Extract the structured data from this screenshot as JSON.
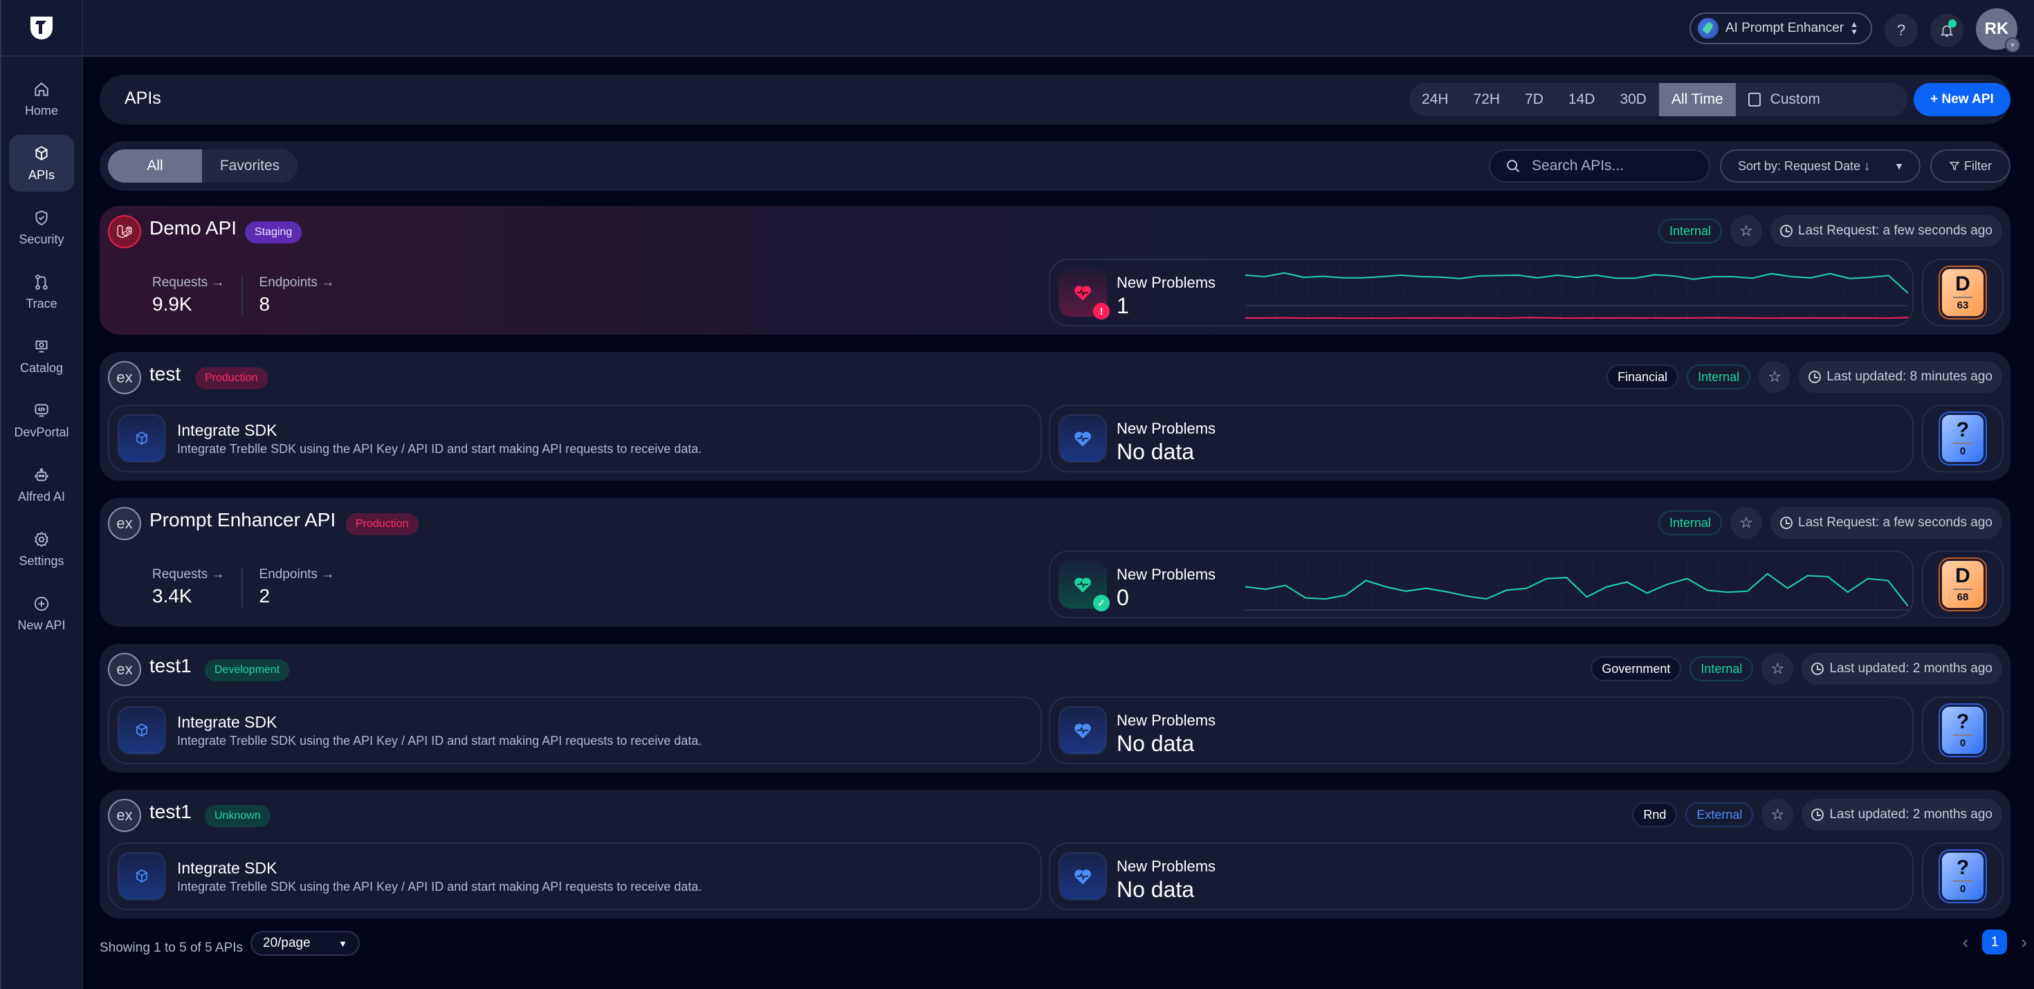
{
  "sidebar": {
    "items": [
      {
        "label": "Home",
        "icon": "home-icon"
      },
      {
        "label": "APIs",
        "icon": "cube-icon",
        "active": true
      },
      {
        "label": "Security",
        "icon": "shield-check-icon"
      },
      {
        "label": "Trace",
        "icon": "git-branch-icon"
      },
      {
        "label": "Catalog",
        "icon": "catalog-icon"
      },
      {
        "label": "DevPortal",
        "icon": "code-monitor-icon"
      },
      {
        "label": "Alfred AI",
        "icon": "robot-icon"
      },
      {
        "label": "Settings",
        "icon": "gear-icon"
      },
      {
        "label": "New API",
        "icon": "plus-circle-icon"
      }
    ]
  },
  "topbar": {
    "project": "AI Prompt Enhancer",
    "help": "?",
    "avatar_initials": "RK",
    "colors": {
      "notification_dot": "#1fd4a0"
    }
  },
  "header": {
    "title": "APIs",
    "time_ranges": [
      "24H",
      "72H",
      "7D",
      "14D",
      "30D",
      "All Time"
    ],
    "active_range": "All Time",
    "custom_label": "Custom",
    "new_api_label": "+ New API",
    "colors": {
      "primary": "#0b63f6"
    }
  },
  "filters": {
    "tabs": [
      "All",
      "Favorites"
    ],
    "active_tab": "All",
    "search_placeholder": "Search APIs...",
    "sort_label": "Sort by: Request Date ↓",
    "filter_label": "Filter"
  },
  "apis": [
    {
      "name": "Demo API",
      "environment": "Staging",
      "visibility": "Internal",
      "category": null,
      "time_label": "Last Request: a few seconds ago",
      "requests_label": "Requests →",
      "requests": "9.9K",
      "endpoints_label": "Endpoints →",
      "endpoints": "8",
      "problems_label": "New Problems",
      "problems": "1",
      "problem_status": "alert",
      "grade": "D",
      "score": "63"
    },
    {
      "name": "test",
      "environment": "Production",
      "visibility": "Internal",
      "category": "Financial",
      "time_label": "Last updated: 8 minutes ago",
      "sdk_title": "Integrate SDK",
      "sdk_desc": "Integrate Treblle SDK using the API Key / API ID and start making API requests to receive data.",
      "problems_label": "New Problems",
      "problems": "No data",
      "grade": "?",
      "score": "0"
    },
    {
      "name": "Prompt Enhancer API",
      "environment": "Production",
      "visibility": "Internal",
      "category": null,
      "time_label": "Last Request: a few seconds ago",
      "requests_label": "Requests →",
      "requests": "3.4K",
      "endpoints_label": "Endpoints →",
      "endpoints": "2",
      "problems_label": "New Problems",
      "problems": "0",
      "problem_status": "ok",
      "grade": "D",
      "score": "68"
    },
    {
      "name": "test1",
      "environment": "Development",
      "visibility": "Internal",
      "category": "Government",
      "time_label": "Last updated: 2 months ago",
      "sdk_title": "Integrate SDK",
      "sdk_desc": "Integrate Treblle SDK using the API Key / API ID and start making API requests to receive data.",
      "problems_label": "New Problems",
      "problems": "No data",
      "grade": "?",
      "score": "0"
    },
    {
      "name": "test1",
      "environment": "Unknown",
      "visibility": "External",
      "category": "Rnd",
      "time_label": "Last updated: 2 months ago",
      "sdk_title": "Integrate SDK",
      "sdk_desc": "Integrate Treblle SDK using the API Key / API ID and start making API requests to receive data.",
      "problems_label": "New Problems",
      "problems": "No data",
      "grade": "?",
      "score": "0"
    }
  ],
  "sparklines": {
    "demo_requests": [
      78,
      74,
      84,
      72,
      75,
      71,
      71,
      74,
      78,
      74,
      73,
      69,
      76,
      77,
      78,
      71,
      78,
      72,
      78,
      70,
      70,
      79,
      76,
      67,
      74,
      74,
      70,
      82,
      74,
      71,
      82,
      69,
      72,
      77,
      30
    ],
    "demo_errors": [
      12,
      12,
      14,
      11,
      12,
      11,
      11,
      11,
      12,
      13,
      13,
      12,
      12,
      11,
      15,
      14,
      11,
      12,
      12,
      12,
      12,
      13,
      12,
      14,
      14,
      12,
      11,
      12,
      13,
      12,
      12,
      12,
      11,
      16
    ],
    "prompt_requests": [
      45,
      40,
      48,
      22,
      20,
      28,
      58,
      45,
      36,
      42,
      35,
      26,
      20,
      38,
      42,
      62,
      64,
      24,
      45,
      55,
      32,
      50,
      62,
      38,
      34,
      36,
      72,
      42,
      68,
      66,
      34,
      62,
      58,
      5
    ],
    "colors": {
      "requests": "#1fd4bc",
      "errors": "#ff1f5a"
    }
  },
  "footer": {
    "showing": "Showing 1 to 5 of 5 APIs",
    "page_size": "20/page",
    "current_page": "1",
    "prev": "‹",
    "next": "›"
  }
}
